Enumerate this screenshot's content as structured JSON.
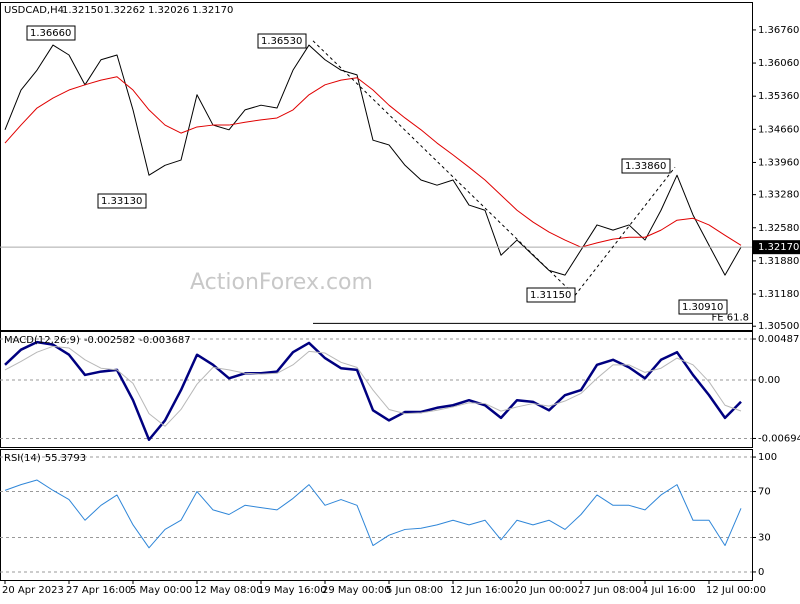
{
  "chart_data": {
    "type": "line",
    "title": "USDCAD,H4",
    "ohlc": [
      1.3215,
      1.32262,
      1.32026,
      1.3217
    ],
    "ohlc_labels": [
      "1.32150",
      "1.32262",
      "1.32026",
      "1.32170"
    ],
    "watermark": "ActionForex.com",
    "categories": [
      "20 Apr 2023",
      null,
      null,
      null,
      "27 Apr 16:00",
      null,
      null,
      null,
      "5 May 00:00",
      null,
      null,
      null,
      "12 May 08:00",
      null,
      null,
      null,
      "19 May 16:00",
      null,
      null,
      null,
      "29 May 00:00",
      null,
      null,
      null,
      "5 Jun 08:00",
      null,
      null,
      null,
      "12 Jun 16:00",
      null,
      null,
      null,
      "20 Jun 00:00",
      null,
      null,
      null,
      "27 Jun 08:00",
      null,
      null,
      null,
      "4 Jul 16:00",
      null,
      null,
      null,
      "12 Jul 00:00",
      null,
      null
    ],
    "panels": [
      {
        "ylim": [
          1.3042,
          1.3735
        ],
        "yticks": [
          {
            "value": 1.3676,
            "label": "1.36760"
          },
          {
            "value": 1.3606,
            "label": "1.36060"
          },
          {
            "value": 1.3536,
            "label": "1.35360"
          },
          {
            "value": 1.3466,
            "label": "1.34660"
          },
          {
            "value": 1.3396,
            "label": "1.33960"
          },
          {
            "value": 1.3328,
            "label": "1.33280"
          },
          {
            "value": 1.3258,
            "label": "1.32580"
          },
          {
            "value": 1.3188,
            "label": "1.31880"
          },
          {
            "value": 1.3118,
            "label": "1.31180"
          },
          {
            "value": 1.305,
            "label": "1.30500"
          }
        ],
        "series": [
          {
            "color": "#000000",
            "values": [
              1.3465,
              1.3549,
              1.3591,
              1.3644,
              1.3623,
              1.356,
              1.3613,
              1.3623,
              1.3507,
              1.3369,
              1.339,
              1.3401,
              1.3539,
              1.3475,
              1.3465,
              1.3507,
              1.3517,
              1.3511,
              1.3591,
              1.3644,
              1.3613,
              1.3591,
              1.3581,
              1.3443,
              1.3433,
              1.339,
              1.3359,
              1.3348,
              1.3359,
              1.3306,
              1.3295,
              1.32,
              1.3232,
              1.32,
              1.3168,
              1.3158,
              1.3211,
              1.3264,
              1.3253,
              1.3264,
              1.3232,
              1.3295,
              1.3369,
              1.3285,
              1.3221,
              1.3158,
              1.3217
            ]
          },
          {
            "color": "#e00000",
            "values": [
              1.3437,
              1.3475,
              1.3511,
              1.3532,
              1.3549,
              1.356,
              1.357,
              1.3577,
              1.3549,
              1.3507,
              1.3475,
              1.3458,
              1.3471,
              1.3475,
              1.3475,
              1.3481,
              1.3486,
              1.349,
              1.3507,
              1.3539,
              1.356,
              1.357,
              1.3575,
              1.3549,
              1.3517,
              1.349,
              1.3465,
              1.3437,
              1.3412,
              1.3386,
              1.3359,
              1.3327,
              1.3295,
              1.327,
              1.3249,
              1.3232,
              1.3217,
              1.3226,
              1.3234,
              1.3238,
              1.3238,
              1.3253,
              1.3274,
              1.3278,
              1.3264,
              1.3242,
              1.3221
            ]
          }
        ],
        "annotations": [
          {
            "value": 1.3666,
            "label": "1.36660"
          },
          {
            "value": 1.3313,
            "label": "1.33130"
          },
          {
            "value": 1.3653,
            "label": "1.36530"
          },
          {
            "value": 1.3115,
            "label": "1.31150"
          },
          {
            "value": 1.3386,
            "label": "1.33860"
          },
          {
            "value": 1.3091,
            "label": "1.30910"
          }
        ],
        "fe_level": {
          "value": 1.3056,
          "label": "FE 61.8"
        }
      },
      {
        "name": "MACD(12,26,9)",
        "header_values": [
          -0.002582,
          -0.003687
        ],
        "ylim": [
          -0.00796,
          0.00582
        ],
        "yticks": [
          0.00487,
          {
            "value": 0,
            "label": "0.00"
          },
          -0.006945
        ],
        "dashed_ticks": true,
        "series": [
          {
            "color": "#000080",
            "values": [
              0.0018,
              0.0036,
              0.0045,
              0.0042,
              0.003,
              0.0006,
              0.001,
              0.0012,
              -0.0024,
              -0.0071,
              -0.0048,
              -0.0012,
              0.003,
              0.0018,
              0.0002,
              0.0008,
              0.0008,
              0.001,
              0.0033,
              0.0044,
              0.0026,
              0.0014,
              0.0012,
              -0.0036,
              -0.0048,
              -0.0038,
              -0.0038,
              -0.0033,
              -0.003,
              -0.0024,
              -0.003,
              -0.0045,
              -0.0024,
              -0.0026,
              -0.0036,
              -0.0018,
              -0.0012,
              0.0018,
              0.0024,
              0.0015,
              0.0002,
              0.0024,
              0.0033,
              0.0006,
              -0.0018,
              -0.0045,
              -0.002582
            ]
          },
          {
            "color": "#b8b8b8",
            "values": [
              0.0012,
              0.0022,
              0.0033,
              0.004,
              0.0038,
              0.0024,
              0.0014,
              0.0012,
              -0.0004,
              -0.004,
              -0.0055,
              -0.0035,
              -0.0005,
              0.0015,
              0.0012,
              0.0008,
              0.0007,
              0.0008,
              0.0018,
              0.0034,
              0.0032,
              0.0021,
              0.0015,
              -0.0012,
              -0.0035,
              -0.004,
              -0.0039,
              -0.0036,
              -0.0032,
              -0.0027,
              -0.0028,
              -0.0037,
              -0.0032,
              -0.0028,
              -0.0031,
              -0.0025,
              -0.0016,
              0.0002,
              0.0018,
              0.0018,
              0.0009,
              0.0014,
              0.0026,
              0.0018,
              -0.0002,
              -0.003,
              -0.003687
            ]
          }
        ]
      },
      {
        "name": "RSI(14)",
        "header_values": [
          55.3793
        ],
        "ylim": [
          -7,
          107
        ],
        "yticks": [
          100,
          70,
          30,
          0
        ],
        "dashed_ticks": true,
        "series": [
          {
            "color": "#2f86d8",
            "values": [
              71,
              76,
              80,
              71,
              63,
              45,
              58,
              67,
              41,
              21,
              37,
              45,
              70,
              54,
              50,
              58,
              56,
              54,
              64,
              76,
              58,
              63,
              58,
              23,
              32,
              37,
              38,
              41,
              45,
              41,
              45,
              28,
              45,
              41,
              45,
              37,
              50,
              67,
              58,
              58,
              54,
              67,
              76,
              45,
              45,
              23,
              55.3793
            ]
          }
        ]
      }
    ]
  }
}
